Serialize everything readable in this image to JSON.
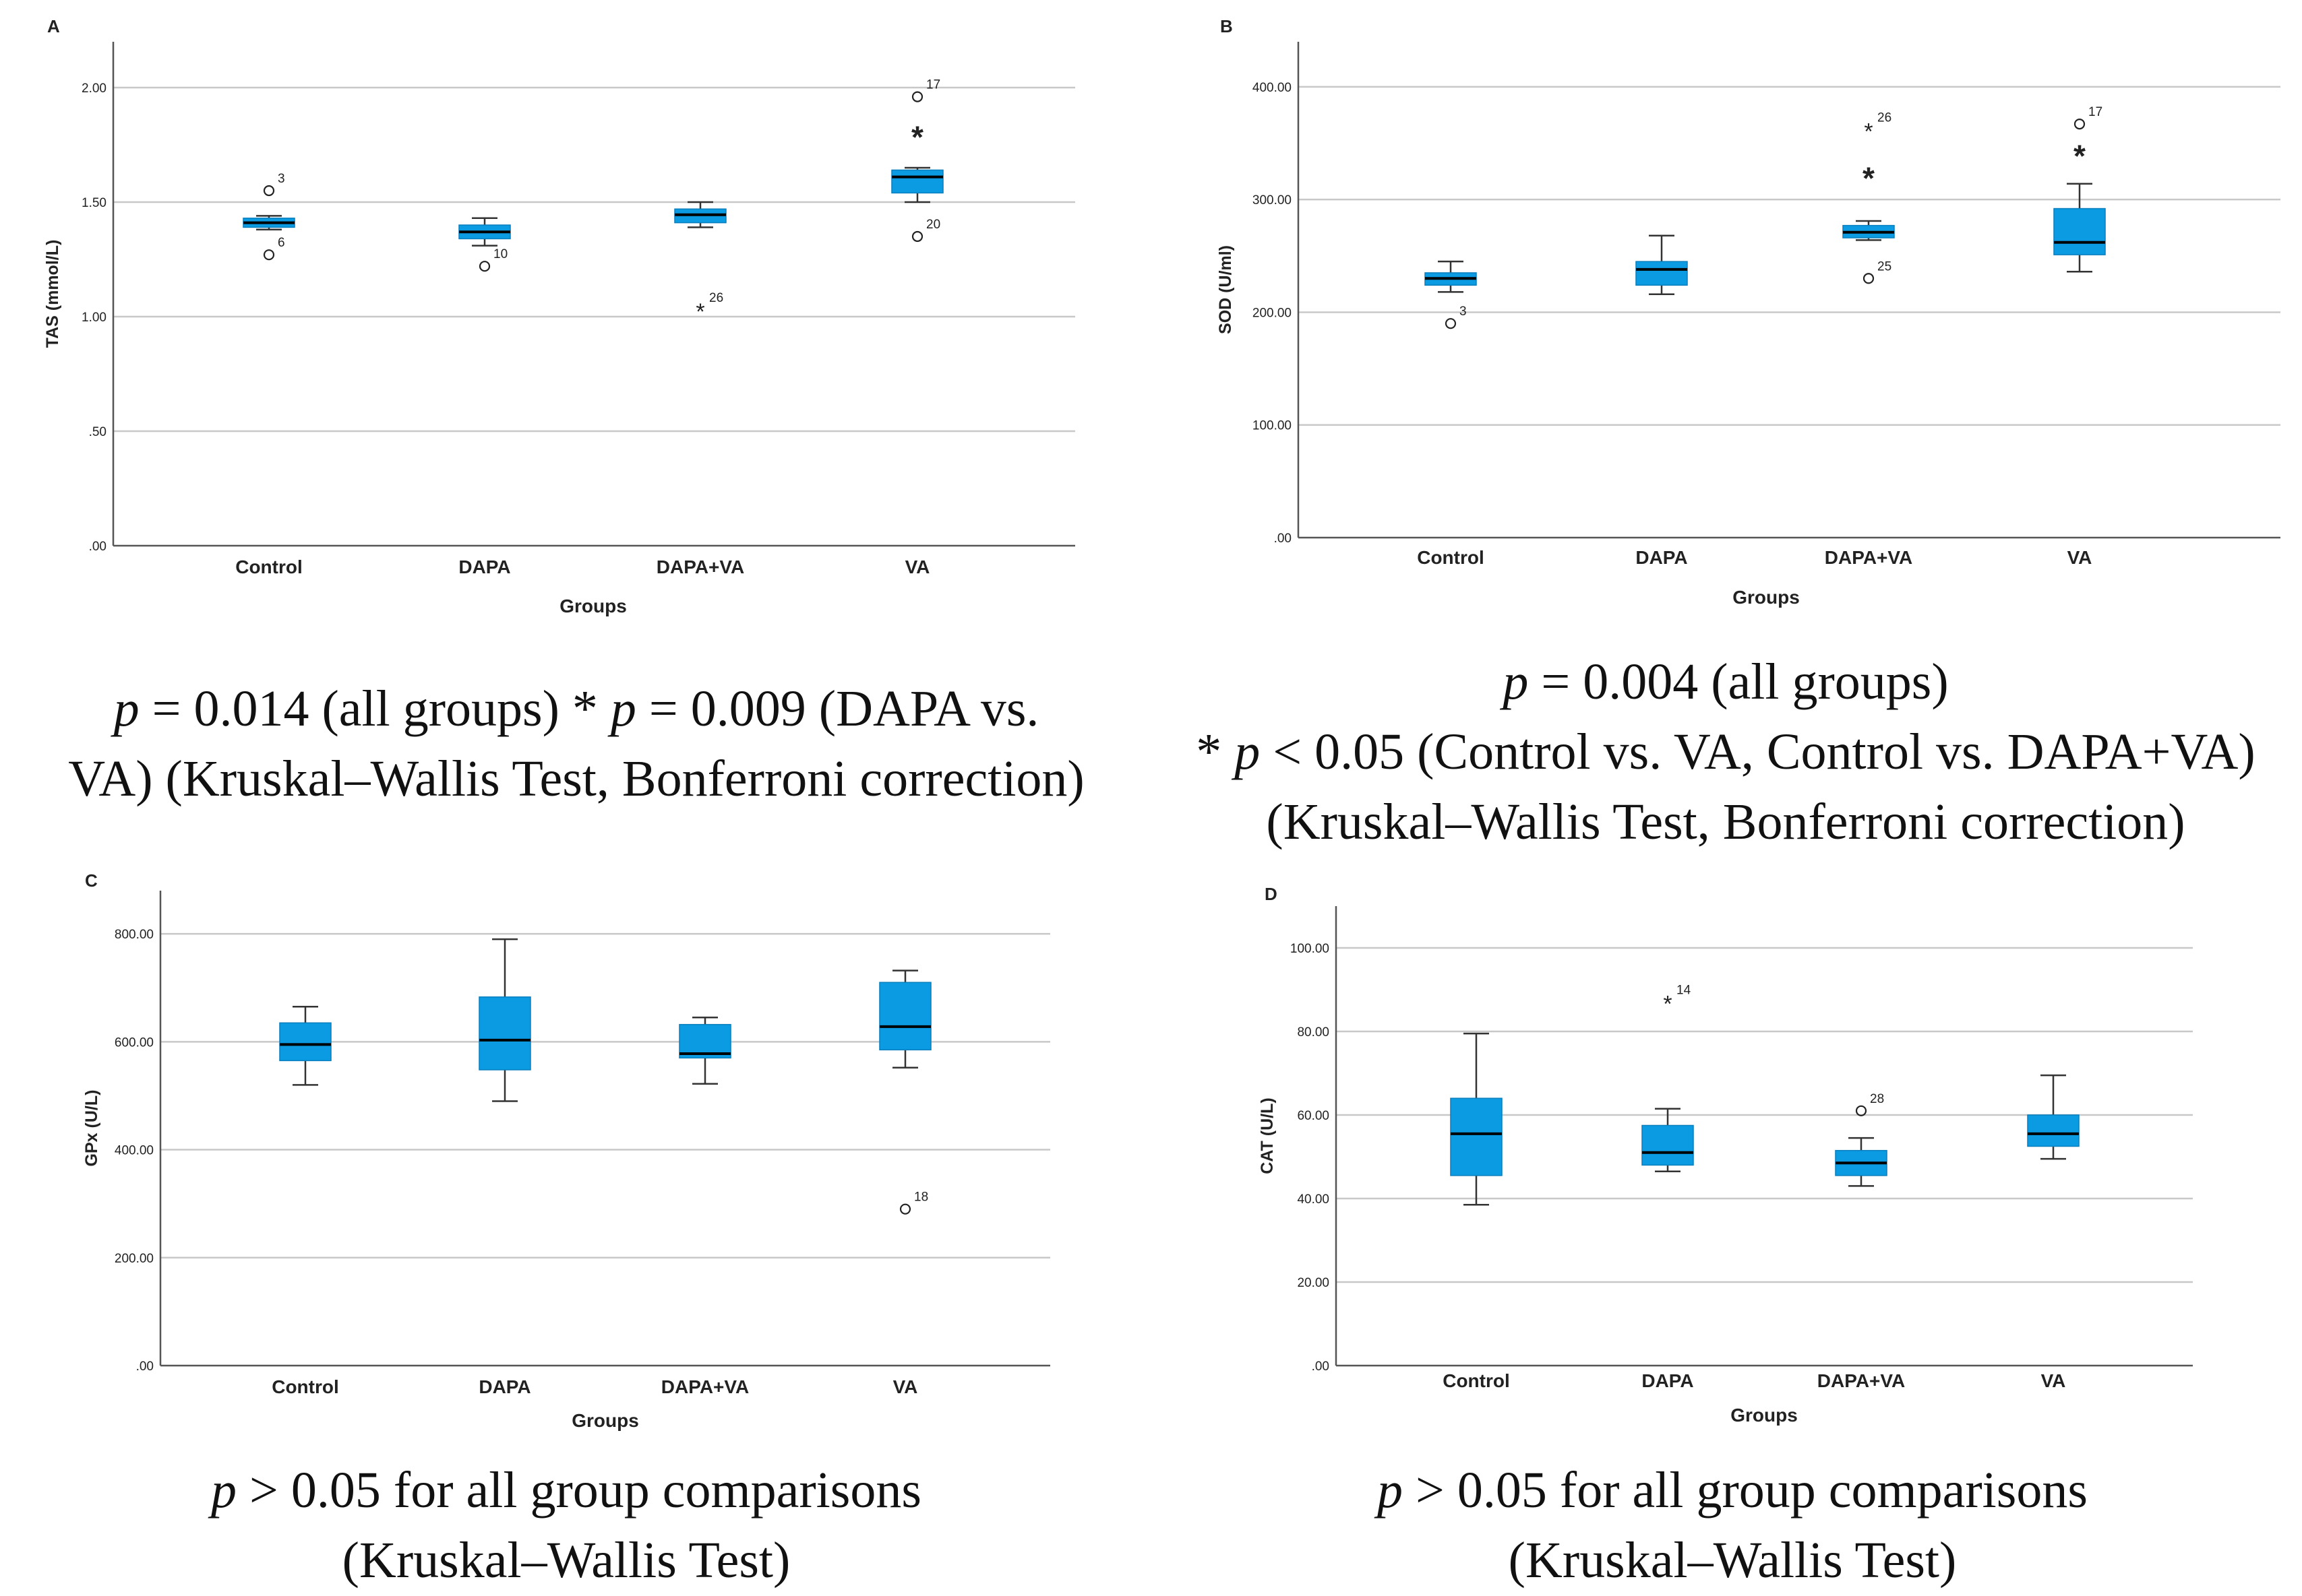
{
  "colors": {
    "box": "#0a9be3",
    "grid": "#c8c8c8",
    "frame": "#555555",
    "whisker": "#333333",
    "text": "#222222"
  },
  "panels": [
    {
      "letter": "A",
      "caption_lines": [
        {
          "p": "p",
          "text": " = 0.014 (all groups) * ",
          "p2": "p",
          "text2": " = 0.009 (DAPA vs."
        },
        {
          "p": "",
          "text": "VA) (Kruskal–Wallis Test, Bonferroni correction)",
          "p2": "",
          "text2": ""
        }
      ]
    },
    {
      "letter": "B",
      "caption_lines": [
        {
          "p": "p",
          "text": " = 0.004 (all groups)",
          "p2": "",
          "text2": ""
        },
        {
          "p": "",
          "text": "* ",
          "p2": "p",
          "text2": " < 0.05 (Control vs. VA, Control vs. DAPA+VA)"
        },
        {
          "p": "",
          "text": "(Kruskal–Wallis Test, Bonferroni correction)",
          "p2": "",
          "text2": ""
        }
      ]
    },
    {
      "letter": "C",
      "caption_lines": [
        {
          "p": "p",
          "text": " > 0.05 for all group comparisons",
          "p2": "",
          "text2": ""
        },
        {
          "p": "",
          "text": "(Kruskal–Wallis Test)",
          "p2": "",
          "text2": ""
        }
      ]
    },
    {
      "letter": "D",
      "caption_lines": [
        {
          "p": "p",
          "text": " > 0.05 for all group comparisons",
          "p2": "",
          "text2": ""
        },
        {
          "p": "",
          "text": "(Kruskal–Wallis Test)",
          "p2": "",
          "text2": ""
        }
      ]
    }
  ],
  "chart_data": [
    {
      "type": "box",
      "panel": "A",
      "xlabel": "Groups",
      "ylabel": "TAS (mmol/L)",
      "categories": [
        "Control",
        "DAPA",
        "DAPA+VA",
        "VA"
      ],
      "ylim": [
        0,
        2.2
      ],
      "yticks": [
        0,
        0.5,
        1.0,
        1.5,
        2.0
      ],
      "ytick_labels": [
        ".00",
        ".50",
        "1.00",
        "1.50",
        "2.00"
      ],
      "boxes": [
        {
          "min": 1.38,
          "q1": 1.39,
          "median": 1.41,
          "q3": 1.43,
          "max": 1.44
        },
        {
          "min": 1.31,
          "q1": 1.34,
          "median": 1.37,
          "q3": 1.4,
          "max": 1.43
        },
        {
          "min": 1.39,
          "q1": 1.41,
          "median": 1.445,
          "q3": 1.47,
          "max": 1.5
        },
        {
          "min": 1.5,
          "q1": 1.54,
          "median": 1.61,
          "q3": 1.64,
          "max": 1.65
        }
      ],
      "outliers": [
        {
          "group": 0,
          "value": 1.55,
          "label": "3",
          "marker": "circle"
        },
        {
          "group": 0,
          "value": 1.27,
          "label": "6",
          "marker": "circle"
        },
        {
          "group": 1,
          "value": 1.22,
          "label": "10",
          "marker": "circle"
        },
        {
          "group": 2,
          "value": 1.03,
          "label": "26",
          "marker": "star"
        },
        {
          "group": 3,
          "value": 1.96,
          "label": "17",
          "marker": "circle"
        },
        {
          "group": 3,
          "value": 1.35,
          "label": "20",
          "marker": "circle"
        }
      ],
      "significance": [
        {
          "group": 3,
          "value": 1.79,
          "label": "*"
        }
      ]
    },
    {
      "type": "box",
      "panel": "B",
      "xlabel": "Groups",
      "ylabel": "SOD (U/ml)",
      "categories": [
        "Control",
        "DAPA",
        "DAPA+VA",
        "VA"
      ],
      "ylim": [
        0,
        440
      ],
      "yticks": [
        0,
        100,
        200,
        300,
        400
      ],
      "ytick_labels": [
        ".00",
        "100.00",
        "200.00",
        "300.00",
        "400.00"
      ],
      "boxes": [
        {
          "min": 218,
          "q1": 224,
          "median": 230,
          "q3": 235,
          "max": 245
        },
        {
          "min": 216,
          "q1": 224,
          "median": 238,
          "q3": 245,
          "max": 268
        },
        {
          "min": 264,
          "q1": 266,
          "median": 271,
          "q3": 277,
          "max": 281
        },
        {
          "min": 236,
          "q1": 251,
          "median": 262,
          "q3": 292,
          "max": 314
        }
      ],
      "outliers": [
        {
          "group": 0,
          "value": 190,
          "label": "3",
          "marker": "circle"
        },
        {
          "group": 2,
          "value": 362,
          "label": "26",
          "marker": "star"
        },
        {
          "group": 2,
          "value": 230,
          "label": "25",
          "marker": "circle"
        },
        {
          "group": 3,
          "value": 367,
          "label": "17",
          "marker": "circle"
        }
      ],
      "significance": [
        {
          "group": 2,
          "value": 320,
          "label": "*"
        },
        {
          "group": 3,
          "value": 340,
          "label": "*"
        }
      ]
    },
    {
      "type": "box",
      "panel": "C",
      "xlabel": "Groups",
      "ylabel": "GPx (U/L)",
      "categories": [
        "Control",
        "DAPA",
        "DAPA+VA",
        "VA"
      ],
      "ylim": [
        0,
        880
      ],
      "yticks": [
        0,
        200,
        400,
        600,
        800
      ],
      "ytick_labels": [
        ".00",
        "200.00",
        "400.00",
        "600.00",
        "800.00"
      ],
      "boxes": [
        {
          "min": 520,
          "q1": 565,
          "median": 595,
          "q3": 635,
          "max": 665
        },
        {
          "min": 490,
          "q1": 548,
          "median": 603,
          "q3": 683,
          "max": 790
        },
        {
          "min": 522,
          "q1": 570,
          "median": 578,
          "q3": 632,
          "max": 645
        },
        {
          "min": 552,
          "q1": 585,
          "median": 628,
          "q3": 710,
          "max": 732
        }
      ],
      "outliers": [
        {
          "group": 3,
          "value": 290,
          "label": "18",
          "marker": "circle"
        }
      ],
      "significance": []
    },
    {
      "type": "box",
      "panel": "D",
      "xlabel": "Groups",
      "ylabel": "CAT (U/L)",
      "categories": [
        "Control",
        "DAPA",
        "DAPA+VA",
        "VA"
      ],
      "ylim": [
        0,
        110
      ],
      "yticks": [
        0,
        20,
        40,
        60,
        80,
        100
      ],
      "ytick_labels": [
        ".00",
        "20.00",
        "40.00",
        "60.00",
        "80.00",
        "100.00"
      ],
      "boxes": [
        {
          "min": 38.5,
          "q1": 45.5,
          "median": 55.5,
          "q3": 64,
          "max": 79.5
        },
        {
          "min": 46.5,
          "q1": 48,
          "median": 51,
          "q3": 57.5,
          "max": 61.5
        },
        {
          "min": 43,
          "q1": 45.5,
          "median": 48.5,
          "q3": 51.5,
          "max": 54.5
        },
        {
          "min": 49.5,
          "q1": 52.5,
          "median": 55.5,
          "q3": 60,
          "max": 69.5
        }
      ],
      "outliers": [
        {
          "group": 1,
          "value": 87,
          "label": "14",
          "marker": "star"
        },
        {
          "group": 2,
          "value": 61,
          "label": "28",
          "marker": "circle"
        }
      ],
      "significance": []
    }
  ]
}
